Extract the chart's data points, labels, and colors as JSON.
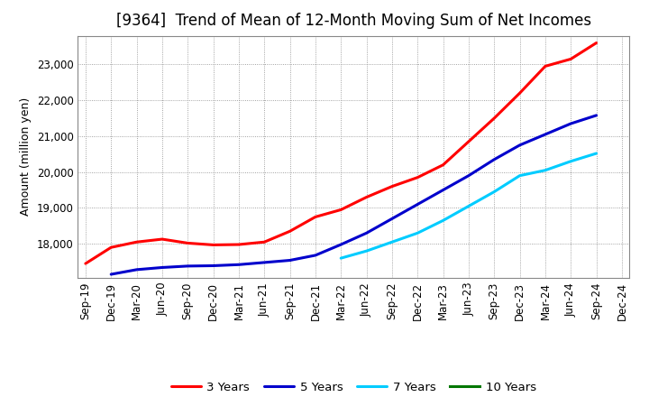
{
  "title": "[9364]  Trend of Mean of 12-Month Moving Sum of Net Incomes",
  "ylabel": "Amount (million yen)",
  "background_color": "#ffffff",
  "grid_color": "#aaaaaa",
  "x_labels": [
    "Sep-19",
    "Dec-19",
    "Mar-20",
    "Jun-20",
    "Sep-20",
    "Dec-20",
    "Mar-21",
    "Jun-21",
    "Sep-21",
    "Dec-21",
    "Mar-22",
    "Jun-22",
    "Sep-22",
    "Dec-22",
    "Mar-23",
    "Jun-23",
    "Sep-23",
    "Dec-23",
    "Mar-24",
    "Jun-24",
    "Sep-24",
    "Dec-24"
  ],
  "series": [
    {
      "label": "3 Years",
      "color": "#ff0000",
      "data_x": [
        0,
        1,
        2,
        3,
        4,
        5,
        6,
        7,
        8,
        9,
        10,
        11,
        12,
        13,
        14,
        15,
        16,
        17,
        18,
        19,
        20
      ],
      "data_y": [
        17450,
        17900,
        18050,
        18130,
        18020,
        17970,
        17980,
        18050,
        18350,
        18750,
        18950,
        19300,
        19600,
        19850,
        20200,
        20850,
        21500,
        22200,
        22950,
        23150,
        23600
      ]
    },
    {
      "label": "5 Years",
      "color": "#0000cc",
      "data_x": [
        1,
        2,
        3,
        4,
        5,
        6,
        7,
        8,
        9,
        10,
        11,
        12,
        13,
        14,
        15,
        16,
        17,
        18,
        19,
        20
      ],
      "data_y": [
        17150,
        17280,
        17340,
        17380,
        17390,
        17420,
        17480,
        17540,
        17680,
        17980,
        18300,
        18700,
        19100,
        19500,
        19900,
        20350,
        20750,
        21050,
        21350,
        21580
      ]
    },
    {
      "label": "7 Years",
      "color": "#00ccff",
      "data_x": [
        10,
        11,
        12,
        13,
        14,
        15,
        16,
        17,
        18,
        19,
        20
      ],
      "data_y": [
        17600,
        17800,
        18050,
        18300,
        18650,
        19050,
        19450,
        19900,
        20050,
        20300,
        20520
      ]
    },
    {
      "label": "10 Years",
      "color": "#007700",
      "data_x": [],
      "data_y": []
    }
  ],
  "ylim": [
    17050,
    23800
  ],
  "yticks": [
    18000,
    19000,
    20000,
    21000,
    22000,
    23000
  ],
  "title_fontsize": 12,
  "axis_fontsize": 9,
  "tick_fontsize": 8.5,
  "legend_fontsize": 9.5
}
